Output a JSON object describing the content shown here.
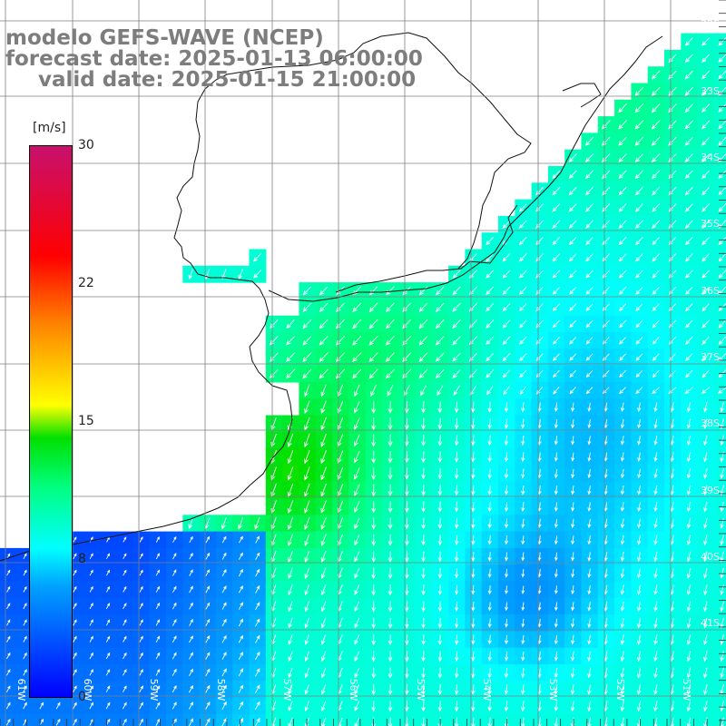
{
  "title": {
    "line1": "modelo GEFS-WAVE (NCEP)",
    "line2": "forecast date: 2025-01-13 06:00:00",
    "line3": "valid date: 2025-01-15 21:00:00"
  },
  "colorbar": {
    "unit": "[m/s]",
    "ticks": [
      "30",
      "22",
      "15",
      "8",
      "0"
    ],
    "tick_values": [
      30,
      22,
      15,
      8,
      0
    ],
    "range": [
      0,
      30
    ],
    "colors": [
      "#0000ff",
      "#00a0ff",
      "#00ffff",
      "#00ff80",
      "#00e000",
      "#ffff00",
      "#ff8000",
      "#ff0000",
      "#c8106e"
    ]
  },
  "map": {
    "lat_labels": [
      "32S",
      "33S",
      "34S",
      "35S",
      "36S",
      "37S",
      "38S",
      "39S",
      "40S",
      "41S"
    ],
    "lon_labels": [
      "61W",
      "60W",
      "59W",
      "58W",
      "57W",
      "56W",
      "55W",
      "54W",
      "53W",
      "52W",
      "51W"
    ],
    "land_color": "#ffffff",
    "grid_color": "#808080",
    "arrow_color": "#ffffff"
  }
}
